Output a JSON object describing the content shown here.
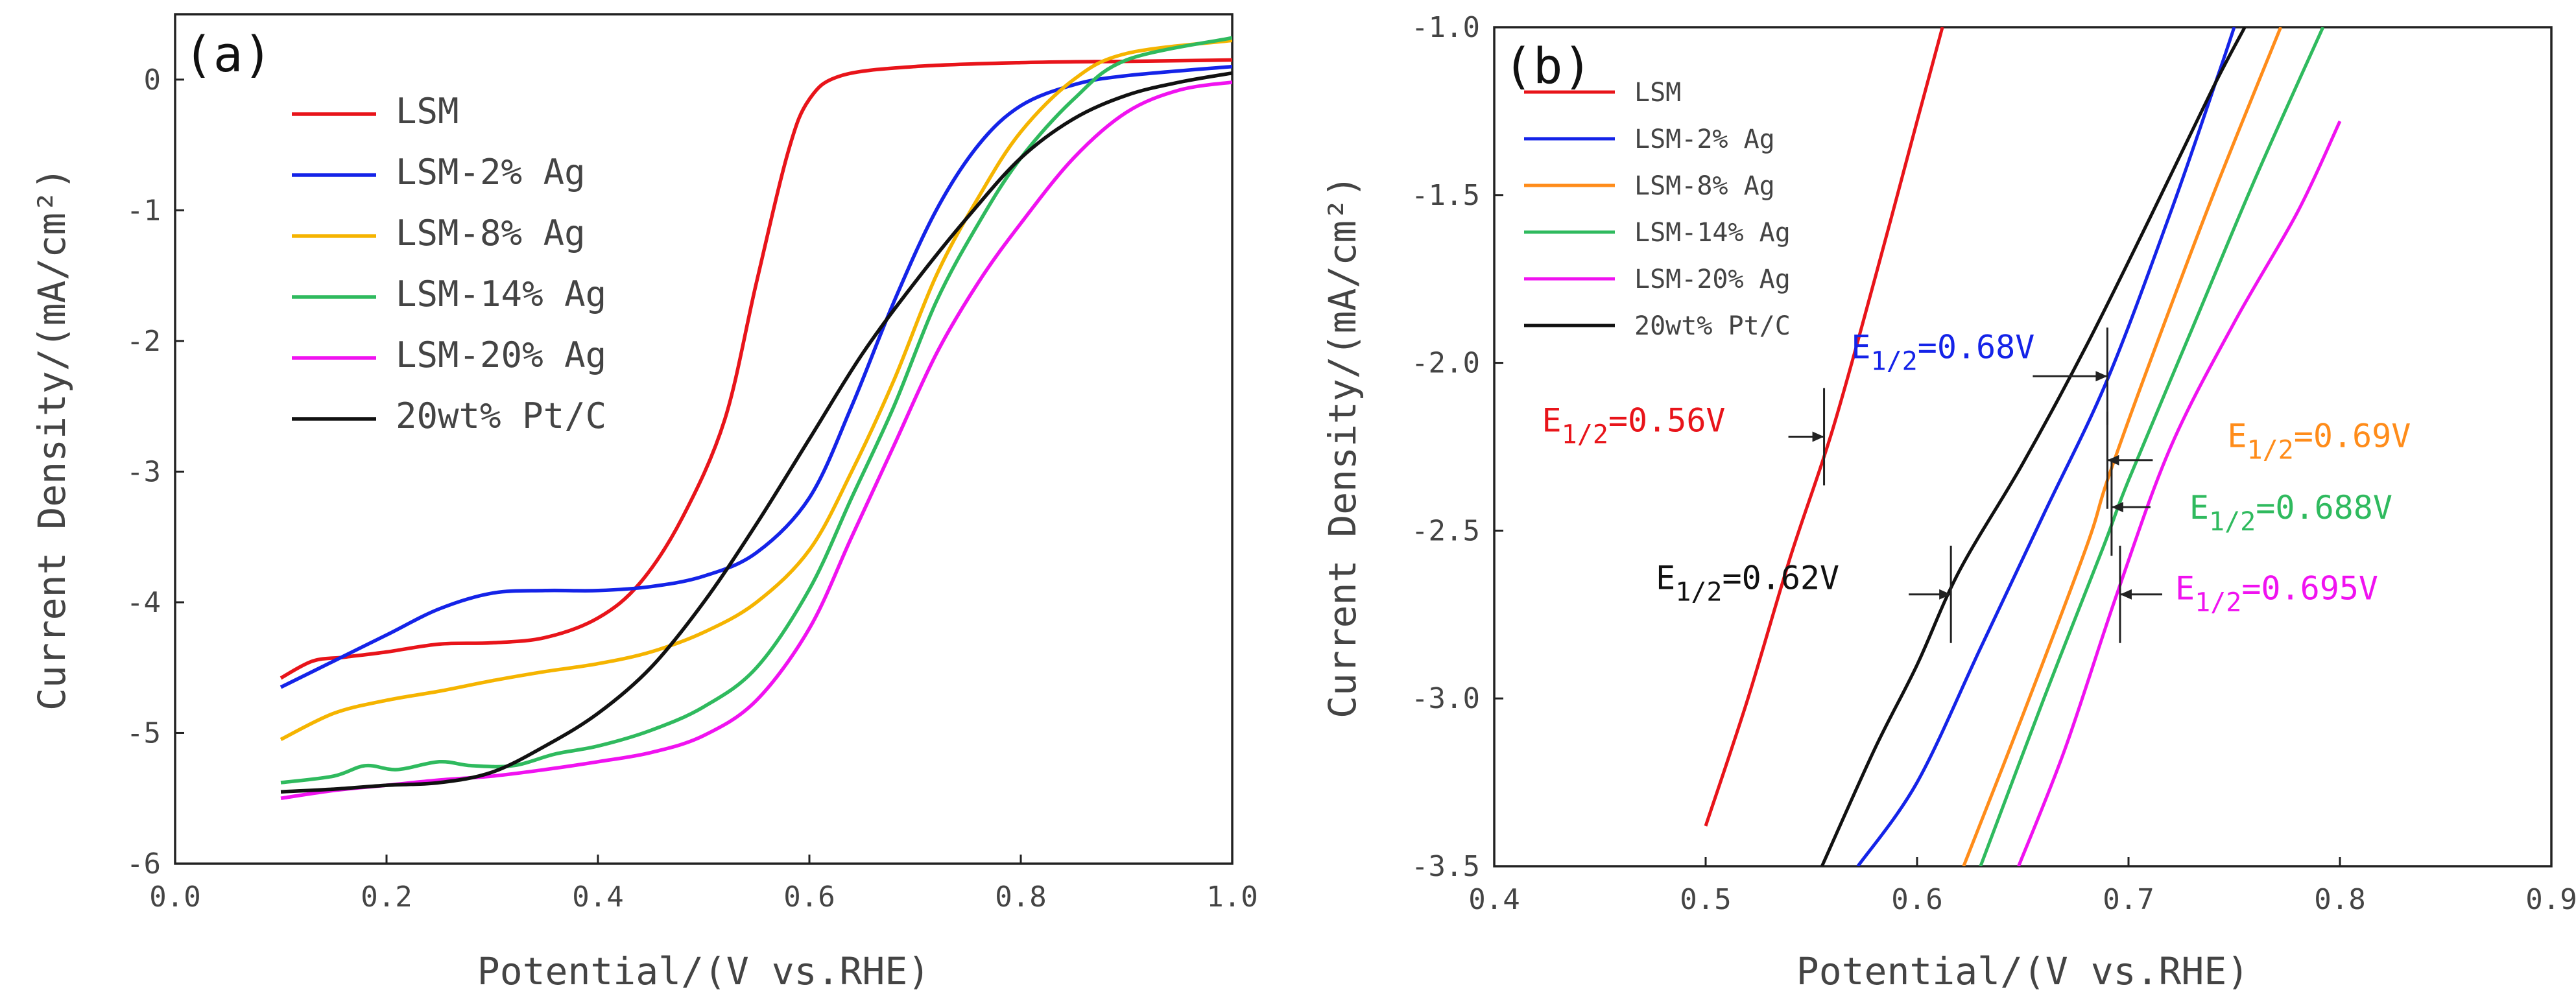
{
  "chart_data": [
    {
      "type": "line",
      "panel_label": "(a)",
      "xlabel": "Potential/(V vs.RHE)",
      "ylabel": "Current Density/(mA/cm²)",
      "xlim": [
        0.0,
        1.0
      ],
      "ylim": [
        -6,
        0.5
      ],
      "xticks": [
        "0.0",
        "0.2",
        "0.4",
        "0.6",
        "0.8",
        "1.0"
      ],
      "yticks": [
        "0",
        "-1",
        "-2",
        "-3",
        "-4",
        "-5",
        "-6"
      ],
      "legend_position": "top-left",
      "series": [
        {
          "name": "LSM",
          "color": "#e8141a",
          "points": [
            [
              0.1,
              -4.58
            ],
            [
              0.13,
              -4.45
            ],
            [
              0.16,
              -4.42
            ],
            [
              0.2,
              -4.38
            ],
            [
              0.25,
              -4.32
            ],
            [
              0.3,
              -4.31
            ],
            [
              0.35,
              -4.27
            ],
            [
              0.4,
              -4.12
            ],
            [
              0.44,
              -3.85
            ],
            [
              0.48,
              -3.35
            ],
            [
              0.52,
              -2.6
            ],
            [
              0.55,
              -1.55
            ],
            [
              0.58,
              -0.55
            ],
            [
              0.6,
              -0.15
            ],
            [
              0.63,
              0.03
            ],
            [
              0.7,
              0.1
            ],
            [
              0.8,
              0.13
            ],
            [
              0.9,
              0.14
            ],
            [
              1.0,
              0.15
            ]
          ]
        },
        {
          "name": "LSM-2% Ag",
          "color": "#1423e8",
          "points": [
            [
              0.1,
              -4.65
            ],
            [
              0.15,
              -4.45
            ],
            [
              0.2,
              -4.25
            ],
            [
              0.25,
              -4.05
            ],
            [
              0.3,
              -3.93
            ],
            [
              0.35,
              -3.91
            ],
            [
              0.4,
              -3.91
            ],
            [
              0.45,
              -3.88
            ],
            [
              0.5,
              -3.8
            ],
            [
              0.55,
              -3.62
            ],
            [
              0.6,
              -3.2
            ],
            [
              0.64,
              -2.5
            ],
            [
              0.68,
              -1.7
            ],
            [
              0.72,
              -1.0
            ],
            [
              0.76,
              -0.5
            ],
            [
              0.8,
              -0.2
            ],
            [
              0.85,
              -0.04
            ],
            [
              0.9,
              0.03
            ],
            [
              1.0,
              0.1
            ]
          ]
        },
        {
          "name": "LSM-8% Ag",
          "color": "#f5b400",
          "points": [
            [
              0.1,
              -5.05
            ],
            [
              0.15,
              -4.85
            ],
            [
              0.2,
              -4.75
            ],
            [
              0.25,
              -4.68
            ],
            [
              0.3,
              -4.6
            ],
            [
              0.35,
              -4.53
            ],
            [
              0.4,
              -4.47
            ],
            [
              0.45,
              -4.38
            ],
            [
              0.5,
              -4.23
            ],
            [
              0.55,
              -4.0
            ],
            [
              0.6,
              -3.6
            ],
            [
              0.64,
              -3.0
            ],
            [
              0.68,
              -2.3
            ],
            [
              0.72,
              -1.5
            ],
            [
              0.76,
              -0.9
            ],
            [
              0.8,
              -0.4
            ],
            [
              0.85,
              0.0
            ],
            [
              0.9,
              0.2
            ],
            [
              1.0,
              0.3
            ]
          ]
        },
        {
          "name": "LSM-14% Ag",
          "color": "#2fba5e",
          "points": [
            [
              0.1,
              -5.38
            ],
            [
              0.15,
              -5.33
            ],
            [
              0.18,
              -5.25
            ],
            [
              0.21,
              -5.28
            ],
            [
              0.25,
              -5.22
            ],
            [
              0.28,
              -5.25
            ],
            [
              0.32,
              -5.25
            ],
            [
              0.36,
              -5.16
            ],
            [
              0.4,
              -5.1
            ],
            [
              0.45,
              -4.98
            ],
            [
              0.5,
              -4.8
            ],
            [
              0.55,
              -4.5
            ],
            [
              0.6,
              -3.9
            ],
            [
              0.64,
              -3.2
            ],
            [
              0.68,
              -2.5
            ],
            [
              0.72,
              -1.7
            ],
            [
              0.76,
              -1.1
            ],
            [
              0.8,
              -0.6
            ],
            [
              0.85,
              -0.15
            ],
            [
              0.9,
              0.15
            ],
            [
              1.0,
              0.32
            ]
          ]
        },
        {
          "name": "LSM-20% Ag",
          "color": "#f012f0",
          "points": [
            [
              0.1,
              -5.5
            ],
            [
              0.15,
              -5.44
            ],
            [
              0.2,
              -5.4
            ],
            [
              0.25,
              -5.36
            ],
            [
              0.3,
              -5.33
            ],
            [
              0.35,
              -5.28
            ],
            [
              0.4,
              -5.22
            ],
            [
              0.45,
              -5.15
            ],
            [
              0.5,
              -5.02
            ],
            [
              0.55,
              -4.75
            ],
            [
              0.6,
              -4.2
            ],
            [
              0.64,
              -3.5
            ],
            [
              0.68,
              -2.8
            ],
            [
              0.72,
              -2.1
            ],
            [
              0.76,
              -1.55
            ],
            [
              0.8,
              -1.1
            ],
            [
              0.85,
              -0.6
            ],
            [
              0.9,
              -0.25
            ],
            [
              0.95,
              -0.08
            ],
            [
              1.0,
              -0.02
            ]
          ]
        },
        {
          "name": "20wt% Pt/C",
          "color": "#111111",
          "points": [
            [
              0.1,
              -5.45
            ],
            [
              0.15,
              -5.43
            ],
            [
              0.2,
              -5.4
            ],
            [
              0.25,
              -5.38
            ],
            [
              0.3,
              -5.3
            ],
            [
              0.35,
              -5.1
            ],
            [
              0.4,
              -4.85
            ],
            [
              0.45,
              -4.5
            ],
            [
              0.5,
              -4.0
            ],
            [
              0.55,
              -3.4
            ],
            [
              0.6,
              -2.75
            ],
            [
              0.65,
              -2.1
            ],
            [
              0.7,
              -1.55
            ],
            [
              0.75,
              -1.05
            ],
            [
              0.8,
              -0.6
            ],
            [
              0.85,
              -0.3
            ],
            [
              0.9,
              -0.12
            ],
            [
              0.95,
              -0.02
            ],
            [
              1.0,
              0.05
            ]
          ]
        }
      ]
    },
    {
      "type": "line",
      "panel_label": "(b)",
      "xlabel": "Potential/(V vs.RHE)",
      "ylabel": "Current Density/(mA/cm²)",
      "xlim": [
        0.4,
        0.9
      ],
      "ylim": [
        -3.5,
        -1.0
      ],
      "xticks": [
        "0.4",
        "0.5",
        "0.6",
        "0.7",
        "0.8",
        "0.9"
      ],
      "yticks": [
        "-1.0",
        "-1.5",
        "-2.0",
        "-2.5",
        "-3.0",
        "-3.5"
      ],
      "legend_position": "top-left",
      "series": [
        {
          "name": "LSM",
          "color": "#e8141a",
          "points": [
            [
              0.5,
              -3.38
            ],
            [
              0.52,
              -3.0
            ],
            [
              0.54,
              -2.58
            ],
            [
              0.56,
              -2.2
            ],
            [
              0.58,
              -1.75
            ],
            [
              0.6,
              -1.28
            ],
            [
              0.612,
              -1.0
            ]
          ]
        },
        {
          "name": "LSM-2% Ag",
          "color": "#1423e8",
          "points": [
            [
              0.572,
              -3.5
            ],
            [
              0.6,
              -3.25
            ],
            [
              0.63,
              -2.85
            ],
            [
              0.66,
              -2.45
            ],
            [
              0.69,
              -2.05
            ],
            [
              0.72,
              -1.55
            ],
            [
              0.742,
              -1.15
            ],
            [
              0.75,
              -1.0
            ]
          ]
        },
        {
          "name": "LSM-8% Ag",
          "color": "#ff8c1a",
          "points": [
            [
              0.622,
              -3.5
            ],
            [
              0.65,
              -3.05
            ],
            [
              0.68,
              -2.55
            ],
            [
              0.69,
              -2.35
            ],
            [
              0.71,
              -2.0
            ],
            [
              0.74,
              -1.5
            ],
            [
              0.772,
              -1.0
            ]
          ]
        },
        {
          "name": "LSM-14% Ag",
          "color": "#2fba5e",
          "points": [
            [
              0.63,
              -3.5
            ],
            [
              0.66,
              -3.0
            ],
            [
              0.688,
              -2.55
            ],
            [
              0.7,
              -2.35
            ],
            [
              0.73,
              -1.9
            ],
            [
              0.76,
              -1.45
            ],
            [
              0.792,
              -1.0
            ]
          ]
        },
        {
          "name": "LSM-20% Ag",
          "color": "#f012f0",
          "points": [
            [
              0.648,
              -3.5
            ],
            [
              0.67,
              -3.15
            ],
            [
              0.695,
              -2.68
            ],
            [
              0.72,
              -2.25
            ],
            [
              0.75,
              -1.88
            ],
            [
              0.78,
              -1.55
            ],
            [
              0.8,
              -1.28
            ]
          ]
        },
        {
          "name": "20wt% Pt/C",
          "color": "#111111",
          "points": [
            [
              0.555,
              -3.5
            ],
            [
              0.58,
              -3.15
            ],
            [
              0.6,
              -2.9
            ],
            [
              0.62,
              -2.62
            ],
            [
              0.65,
              -2.3
            ],
            [
              0.68,
              -1.95
            ],
            [
              0.71,
              -1.57
            ],
            [
              0.74,
              -1.18
            ],
            [
              0.755,
              -1.0
            ]
          ]
        }
      ],
      "annotations": [
        {
          "label": "E",
          "sub": "1/2",
          "value": "=0.56V",
          "color": "#e8141a",
          "x": 0.556,
          "y": -2.22
        },
        {
          "label": "E",
          "sub": "1/2",
          "value": "=0.68V",
          "color": "#1423e8",
          "x": 0.69,
          "y": -2.04
        },
        {
          "label": "E",
          "sub": "1/2",
          "value": "=0.69V",
          "color": "#ff8c1a",
          "x": 0.69,
          "y": -2.29
        },
        {
          "label": "E",
          "sub": "1/2",
          "value": "=0.688V",
          "color": "#2fba5e",
          "x": 0.692,
          "y": -2.43
        },
        {
          "label": "E",
          "sub": "1/2",
          "value": "=0.62V",
          "color": "#111111",
          "x": 0.616,
          "y": -2.69
        },
        {
          "label": "E",
          "sub": "1/2",
          "value": "=0.695V",
          "color": "#f012f0",
          "x": 0.696,
          "y": -2.69
        }
      ]
    }
  ]
}
